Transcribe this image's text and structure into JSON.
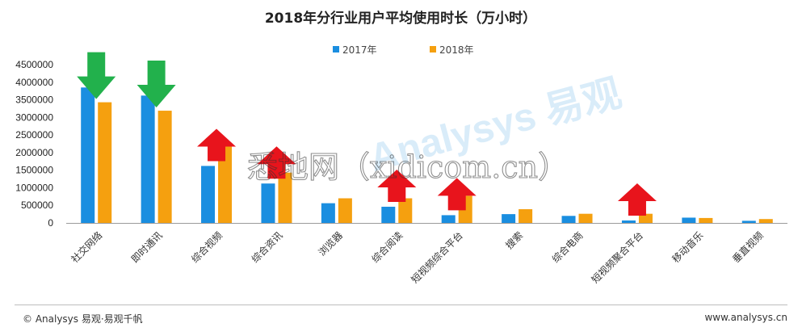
{
  "chart_data": {
    "type": "bar",
    "title": "2018年分行业用户平均使用时长（万小时）",
    "categories": [
      "社交网络",
      "即时通讯",
      "综合视频",
      "综合资讯",
      "浏览器",
      "综合阅读",
      "短视频综合平台",
      "搜索",
      "综合电商",
      "短视频聚合平台",
      "移动音乐",
      "垂直视频"
    ],
    "series": [
      {
        "name": "2017年",
        "color": "#1a8ee0",
        "values": [
          3850000,
          3620000,
          1620000,
          1120000,
          560000,
          460000,
          220000,
          250000,
          200000,
          70000,
          150000,
          60000
        ]
      },
      {
        "name": "2018年",
        "color": "#f5a00f",
        "values": [
          3430000,
          3190000,
          2180000,
          1430000,
          700000,
          700000,
          770000,
          390000,
          260000,
          260000,
          140000,
          110000
        ]
      }
    ],
    "ylim": [
      0,
      4500000
    ],
    "yticks": [
      0,
      500000,
      1000000,
      1500000,
      2000000,
      2500000,
      3000000,
      3500000,
      4000000,
      4500000
    ],
    "ytick_labels": [
      "0",
      "500000",
      "1000000",
      "1500000",
      "2000000",
      "2500000",
      "3000000",
      "3500000",
      "4000000",
      "4500000"
    ],
    "legend_position": "top-center",
    "grid": false,
    "annotations": [
      {
        "category": "社交网络",
        "direction": "down",
        "color": "#22b14c"
      },
      {
        "category": "即时通讯",
        "direction": "down",
        "color": "#22b14c"
      },
      {
        "category": "综合视频",
        "direction": "up",
        "color": "#e8141c"
      },
      {
        "category": "综合资讯",
        "direction": "up",
        "color": "#e8141c"
      },
      {
        "category": "综合阅读",
        "direction": "up",
        "color": "#e8141c"
      },
      {
        "category": "短视频综合平台",
        "direction": "up",
        "color": "#e8141c"
      },
      {
        "category": "短视频聚合平台",
        "direction": "up",
        "color": "#e8141c"
      }
    ]
  },
  "watermark": {
    "brand_text": "Analysys 易观",
    "site_text": "悉地网（xidicom.cn）"
  },
  "footer": {
    "left": "© Analysys 易观·易观千帆",
    "right": "www.analysys.cn"
  }
}
